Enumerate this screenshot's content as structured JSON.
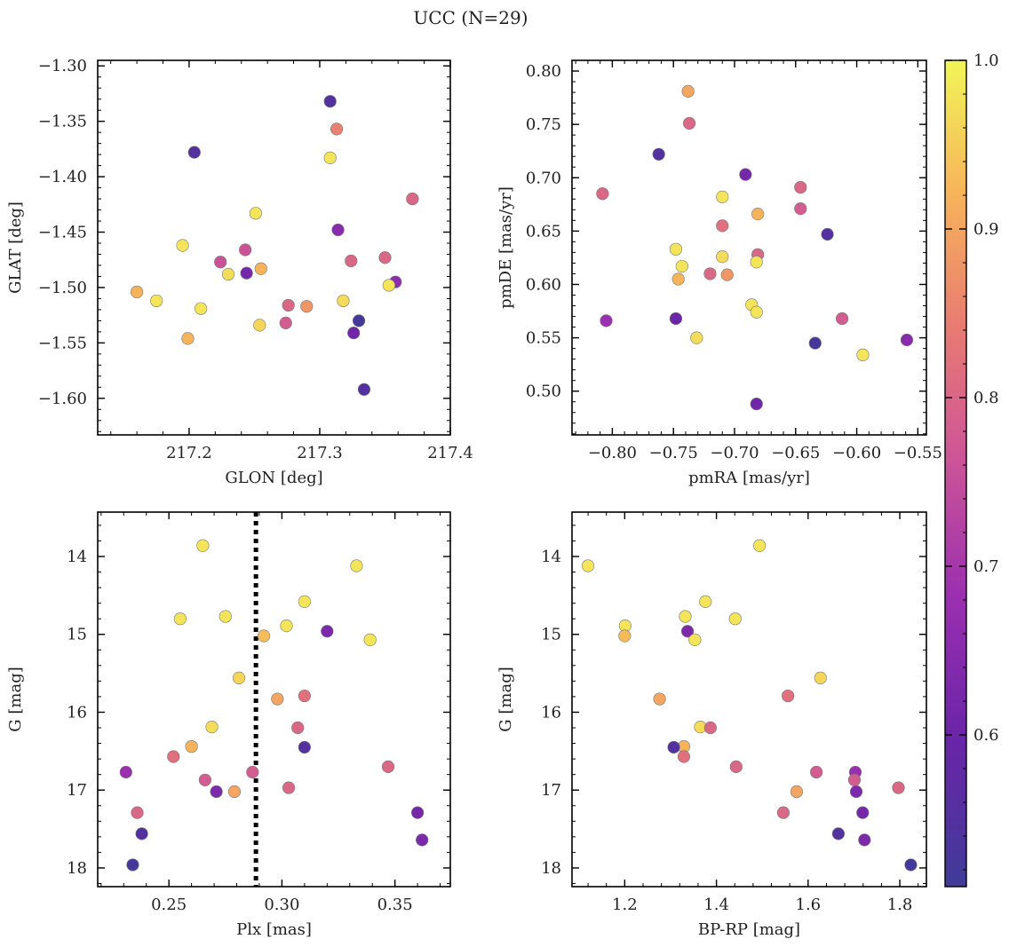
{
  "figure": {
    "title": "UCC (N=29)"
  },
  "colorbar": {
    "colormap": "plasma",
    "range": [
      0.51,
      1.0
    ],
    "ticks": [
      0.6,
      0.7,
      0.8,
      0.9,
      1.0
    ],
    "tick_labels": [
      "0.6",
      "0.7",
      "0.8",
      "0.9",
      "1.0"
    ]
  },
  "chart_data": [
    {
      "type": "scatter",
      "xlabel": "GLON [deg]",
      "ylabel": "GLAT [deg]",
      "xlim": [
        217.13,
        217.4
      ],
      "ylim": [
        -1.633,
        -1.295
      ],
      "xticks": [
        217.2,
        217.3,
        217.4
      ],
      "xtick_labels": [
        "217.2",
        "217.3",
        "217.4"
      ],
      "yticks": [
        -1.3,
        -1.35,
        -1.4,
        -1.45,
        -1.5,
        -1.55,
        -1.6
      ],
      "ytick_labels": [
        "−1.30",
        "−1.35",
        "−1.40",
        "−1.45",
        "−1.50",
        "−1.55",
        "−1.60"
      ],
      "y_inverted": false,
      "points": [
        {
          "x": 217.308,
          "y": -1.332,
          "c": 0.55
        },
        {
          "x": 217.204,
          "y": -1.378,
          "c": 0.55
        },
        {
          "x": 217.313,
          "y": -1.357,
          "c": 0.85
        },
        {
          "x": 217.308,
          "y": -1.383,
          "c": 0.98
        },
        {
          "x": 217.371,
          "y": -1.42,
          "c": 0.8
        },
        {
          "x": 217.251,
          "y": -1.433,
          "c": 0.98
        },
        {
          "x": 217.314,
          "y": -1.448,
          "c": 0.65
        },
        {
          "x": 217.195,
          "y": -1.462,
          "c": 0.98
        },
        {
          "x": 217.243,
          "y": -1.466,
          "c": 0.76
        },
        {
          "x": 217.35,
          "y": -1.473,
          "c": 0.8
        },
        {
          "x": 217.324,
          "y": -1.476,
          "c": 0.8
        },
        {
          "x": 217.224,
          "y": -1.477,
          "c": 0.76
        },
        {
          "x": 217.255,
          "y": -1.483,
          "c": 0.92
        },
        {
          "x": 217.244,
          "y": -1.487,
          "c": 0.62
        },
        {
          "x": 217.23,
          "y": -1.488,
          "c": 0.97
        },
        {
          "x": 217.358,
          "y": -1.495,
          "c": 0.66
        },
        {
          "x": 217.353,
          "y": -1.498,
          "c": 0.98
        },
        {
          "x": 217.16,
          "y": -1.504,
          "c": 0.92
        },
        {
          "x": 217.175,
          "y": -1.512,
          "c": 0.98
        },
        {
          "x": 217.318,
          "y": -1.512,
          "c": 0.97
        },
        {
          "x": 217.276,
          "y": -1.516,
          "c": 0.8
        },
        {
          "x": 217.29,
          "y": -1.517,
          "c": 0.88
        },
        {
          "x": 217.209,
          "y": -1.519,
          "c": 0.98
        },
        {
          "x": 217.33,
          "y": -1.53,
          "c": 0.52
        },
        {
          "x": 217.274,
          "y": -1.532,
          "c": 0.78
        },
        {
          "x": 217.254,
          "y": -1.534,
          "c": 0.96
        },
        {
          "x": 217.326,
          "y": -1.541,
          "c": 0.61
        },
        {
          "x": 217.199,
          "y": -1.546,
          "c": 0.92
        },
        {
          "x": 217.334,
          "y": -1.592,
          "c": 0.55
        }
      ]
    },
    {
      "type": "scatter",
      "xlabel": "pmRA [mas/yr]",
      "ylabel": "pmDE [mas/yr]",
      "xlim": [
        -0.833,
        -0.543
      ],
      "ylim": [
        0.459,
        0.81
      ],
      "xticks": [
        -0.8,
        -0.75,
        -0.7,
        -0.65,
        -0.6,
        -0.55
      ],
      "xtick_labels": [
        "−0.80",
        "−0.75",
        "−0.70",
        "−0.65",
        "−0.60",
        "−0.55"
      ],
      "yticks": [
        0.5,
        0.55,
        0.6,
        0.65,
        0.7,
        0.75,
        0.8
      ],
      "ytick_labels": [
        "0.50",
        "0.55",
        "0.60",
        "0.65",
        "0.70",
        "0.75",
        "0.80"
      ],
      "y_inverted": false,
      "points": [
        {
          "x": -0.738,
          "y": 0.781,
          "c": 0.9
        },
        {
          "x": -0.737,
          "y": 0.751,
          "c": 0.8
        },
        {
          "x": -0.762,
          "y": 0.722,
          "c": 0.55
        },
        {
          "x": -0.691,
          "y": 0.703,
          "c": 0.62
        },
        {
          "x": -0.808,
          "y": 0.685,
          "c": 0.8
        },
        {
          "x": -0.646,
          "y": 0.691,
          "c": 0.8
        },
        {
          "x": -0.71,
          "y": 0.682,
          "c": 0.98
        },
        {
          "x": -0.646,
          "y": 0.671,
          "c": 0.78
        },
        {
          "x": -0.681,
          "y": 0.666,
          "c": 0.92
        },
        {
          "x": -0.71,
          "y": 0.655,
          "c": 0.82
        },
        {
          "x": -0.624,
          "y": 0.647,
          "c": 0.55
        },
        {
          "x": -0.748,
          "y": 0.633,
          "c": 0.98
        },
        {
          "x": -0.681,
          "y": 0.628,
          "c": 0.8
        },
        {
          "x": -0.71,
          "y": 0.626,
          "c": 0.97
        },
        {
          "x": -0.682,
          "y": 0.621,
          "c": 0.98
        },
        {
          "x": -0.743,
          "y": 0.617,
          "c": 0.98
        },
        {
          "x": -0.72,
          "y": 0.61,
          "c": 0.8
        },
        {
          "x": -0.706,
          "y": 0.609,
          "c": 0.88
        },
        {
          "x": -0.746,
          "y": 0.605,
          "c": 0.92
        },
        {
          "x": -0.686,
          "y": 0.581,
          "c": 0.98
        },
        {
          "x": -0.682,
          "y": 0.574,
          "c": 0.98
        },
        {
          "x": -0.748,
          "y": 0.568,
          "c": 0.6
        },
        {
          "x": -0.805,
          "y": 0.566,
          "c": 0.68
        },
        {
          "x": -0.612,
          "y": 0.568,
          "c": 0.78
        },
        {
          "x": -0.731,
          "y": 0.55,
          "c": 0.97
        },
        {
          "x": -0.559,
          "y": 0.548,
          "c": 0.65
        },
        {
          "x": -0.634,
          "y": 0.545,
          "c": 0.52
        },
        {
          "x": -0.595,
          "y": 0.534,
          "c": 0.98
        },
        {
          "x": -0.682,
          "y": 0.488,
          "c": 0.61
        }
      ]
    },
    {
      "type": "scatter",
      "xlabel": "Plx [mas]",
      "ylabel": "G [mag]",
      "xlim": [
        0.2185,
        0.3745
      ],
      "ylim": [
        18.24,
        13.43
      ],
      "xticks": [
        0.25,
        0.3,
        0.35
      ],
      "xtick_labels": [
        "0.25",
        "0.30",
        "0.35"
      ],
      "yticks": [
        14,
        15,
        16,
        17,
        18
      ],
      "ytick_labels": [
        "14",
        "15",
        "16",
        "17",
        "18"
      ],
      "y_inverted": true,
      "vline": {
        "x": 0.2885,
        "style": "dotted",
        "color": "#000000"
      },
      "points": [
        {
          "x": 0.265,
          "y": 13.86,
          "c": 0.98
        },
        {
          "x": 0.333,
          "y": 14.12,
          "c": 0.98
        },
        {
          "x": 0.31,
          "y": 14.58,
          "c": 0.98
        },
        {
          "x": 0.275,
          "y": 14.77,
          "c": 0.98
        },
        {
          "x": 0.255,
          "y": 14.8,
          "c": 0.98
        },
        {
          "x": 0.302,
          "y": 14.89,
          "c": 0.98
        },
        {
          "x": 0.32,
          "y": 14.96,
          "c": 0.63
        },
        {
          "x": 0.292,
          "y": 15.02,
          "c": 0.93
        },
        {
          "x": 0.339,
          "y": 15.07,
          "c": 0.98
        },
        {
          "x": 0.281,
          "y": 15.56,
          "c": 0.96
        },
        {
          "x": 0.31,
          "y": 15.79,
          "c": 0.82
        },
        {
          "x": 0.298,
          "y": 15.83,
          "c": 0.9
        },
        {
          "x": 0.269,
          "y": 16.19,
          "c": 0.97
        },
        {
          "x": 0.307,
          "y": 16.2,
          "c": 0.8
        },
        {
          "x": 0.26,
          "y": 16.44,
          "c": 0.92
        },
        {
          "x": 0.31,
          "y": 16.45,
          "c": 0.55
        },
        {
          "x": 0.252,
          "y": 16.57,
          "c": 0.82
        },
        {
          "x": 0.347,
          "y": 16.7,
          "c": 0.8
        },
        {
          "x": 0.231,
          "y": 16.77,
          "c": 0.68
        },
        {
          "x": 0.287,
          "y": 16.77,
          "c": 0.78
        },
        {
          "x": 0.266,
          "y": 16.87,
          "c": 0.78
        },
        {
          "x": 0.303,
          "y": 16.97,
          "c": 0.8
        },
        {
          "x": 0.271,
          "y": 17.02,
          "c": 0.63
        },
        {
          "x": 0.279,
          "y": 17.02,
          "c": 0.9
        },
        {
          "x": 0.236,
          "y": 17.29,
          "c": 0.8
        },
        {
          "x": 0.36,
          "y": 17.29,
          "c": 0.62
        },
        {
          "x": 0.238,
          "y": 17.56,
          "c": 0.55
        },
        {
          "x": 0.362,
          "y": 17.64,
          "c": 0.63
        },
        {
          "x": 0.234,
          "y": 17.96,
          "c": 0.52
        }
      ]
    },
    {
      "type": "scatter",
      "xlabel": "BP-RP [mag]",
      "ylabel": "G [mag]",
      "xlim": [
        1.085,
        1.858
      ],
      "ylim": [
        18.24,
        13.43
      ],
      "xticks": [
        1.2,
        1.4,
        1.6,
        1.8
      ],
      "xtick_labels": [
        "1.2",
        "1.4",
        "1.6",
        "1.8"
      ],
      "yticks": [
        14,
        15,
        16,
        17,
        18
      ],
      "ytick_labels": [
        "14",
        "15",
        "16",
        "17",
        "18"
      ],
      "y_inverted": true,
      "points": [
        {
          "x": 1.494,
          "y": 13.86,
          "c": 0.98
        },
        {
          "x": 1.12,
          "y": 14.12,
          "c": 0.98
        },
        {
          "x": 1.376,
          "y": 14.58,
          "c": 0.98
        },
        {
          "x": 1.332,
          "y": 14.77,
          "c": 0.98
        },
        {
          "x": 1.441,
          "y": 14.8,
          "c": 0.98
        },
        {
          "x": 1.201,
          "y": 14.89,
          "c": 0.98
        },
        {
          "x": 1.337,
          "y": 14.96,
          "c": 0.63
        },
        {
          "x": 1.2,
          "y": 15.02,
          "c": 0.93
        },
        {
          "x": 1.353,
          "y": 15.07,
          "c": 0.98
        },
        {
          "x": 1.627,
          "y": 15.56,
          "c": 0.96
        },
        {
          "x": 1.556,
          "y": 15.79,
          "c": 0.82
        },
        {
          "x": 1.276,
          "y": 15.83,
          "c": 0.9
        },
        {
          "x": 1.365,
          "y": 16.19,
          "c": 0.97
        },
        {
          "x": 1.387,
          "y": 16.2,
          "c": 0.8
        },
        {
          "x": 1.329,
          "y": 16.44,
          "c": 0.92
        },
        {
          "x": 1.307,
          "y": 16.45,
          "c": 0.55
        },
        {
          "x": 1.329,
          "y": 16.57,
          "c": 0.82
        },
        {
          "x": 1.443,
          "y": 16.7,
          "c": 0.8
        },
        {
          "x": 1.703,
          "y": 16.77,
          "c": 0.68
        },
        {
          "x": 1.618,
          "y": 16.77,
          "c": 0.78
        },
        {
          "x": 1.701,
          "y": 16.87,
          "c": 0.78
        },
        {
          "x": 1.797,
          "y": 16.97,
          "c": 0.8
        },
        {
          "x": 1.705,
          "y": 17.02,
          "c": 0.63
        },
        {
          "x": 1.575,
          "y": 17.02,
          "c": 0.9
        },
        {
          "x": 1.546,
          "y": 17.29,
          "c": 0.8
        },
        {
          "x": 1.719,
          "y": 17.29,
          "c": 0.62
        },
        {
          "x": 1.666,
          "y": 17.56,
          "c": 0.55
        },
        {
          "x": 1.723,
          "y": 17.64,
          "c": 0.63
        },
        {
          "x": 1.824,
          "y": 17.96,
          "c": 0.52
        }
      ]
    }
  ]
}
